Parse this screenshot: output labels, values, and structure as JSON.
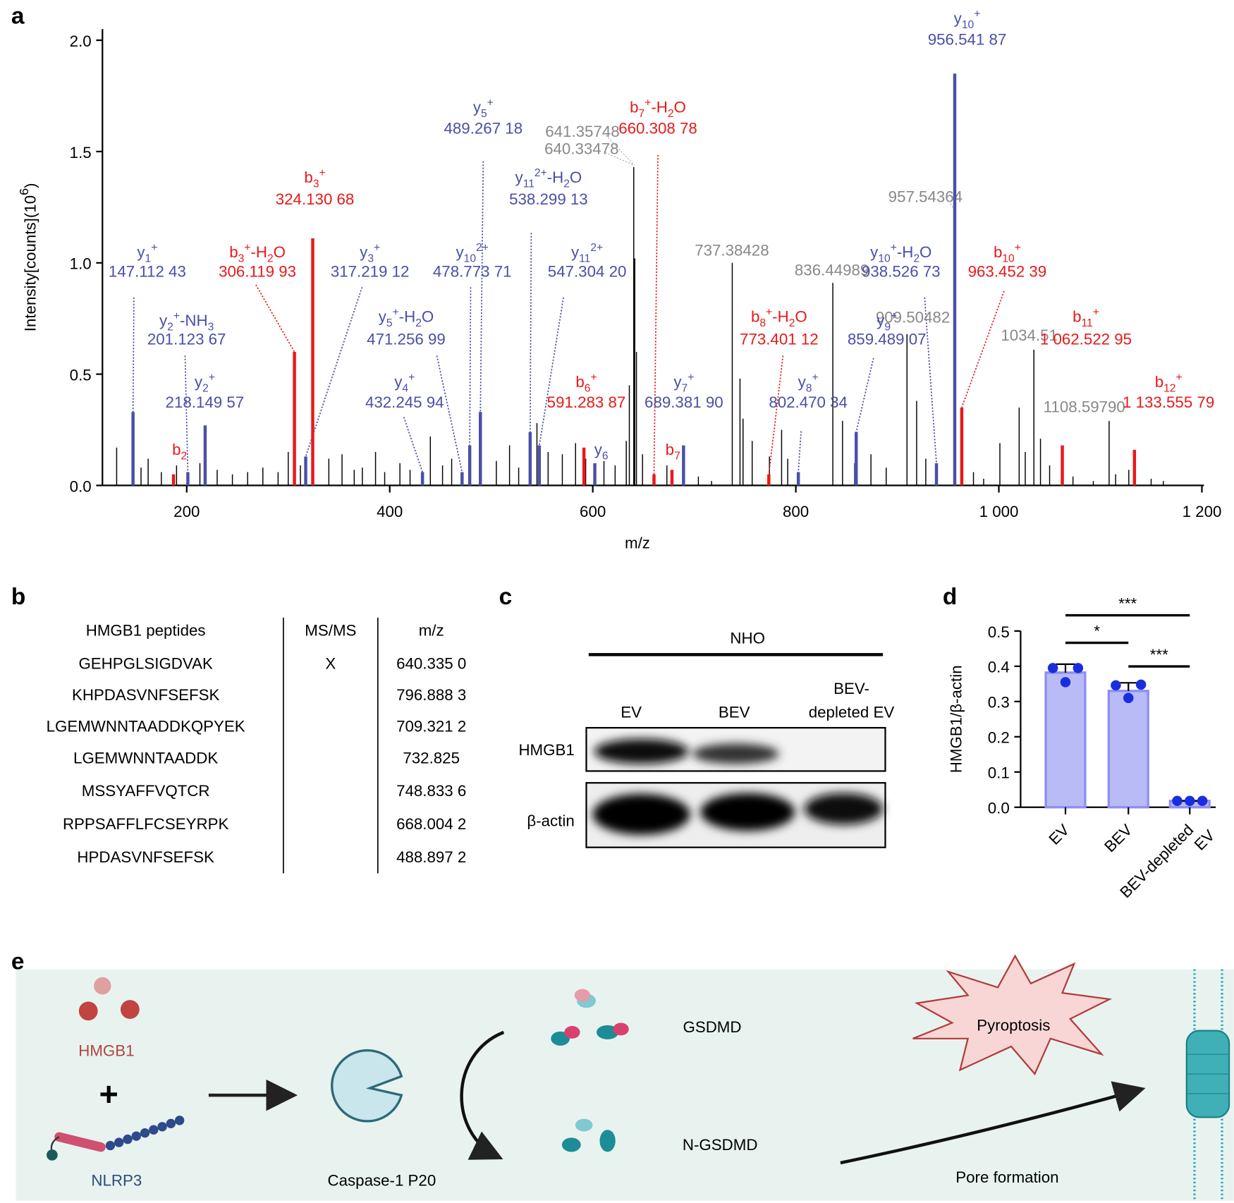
{
  "panel_labels": [
    "a",
    "b",
    "c",
    "d",
    "e"
  ],
  "chart_data": [
    {
      "type": "spectrum",
      "xlabel": "m/z",
      "ylabel": [
        [
          "Intensity[counts](10",
          ""
        ],
        [
          "6",
          "sup"
        ],
        [
          ")",
          ""
        ]
      ],
      "xlim": [
        117,
        1202
      ],
      "ylim": [
        0,
        2.05
      ],
      "xticks": [
        200,
        400,
        600,
        800,
        {
          "value": 1000,
          "label": "1 000"
        },
        {
          "value": 1200,
          "label": "1 200"
        }
      ],
      "yticks": [
        {
          "value": 0,
          "label": "0.0"
        },
        0.5,
        {
          "value": 1,
          "label": "1.0"
        },
        1.5,
        {
          "value": 2,
          "label": "2.0"
        }
      ],
      "series": [
        {
          "color": "#000000",
          "x": [
            131,
            155,
            162,
            175,
            190,
            213,
            230,
            245,
            260,
            275,
            290,
            300,
            312,
            340,
            353,
            365,
            373,
            386,
            395,
            410,
            420,
            440,
            452,
            461,
            505,
            518,
            527,
            545,
            556,
            570,
            583,
            593,
            611,
            622,
            633,
            636,
            640.33478,
            641.35748,
            643,
            649,
            673,
            704,
            717,
            737.38428,
            745,
            748,
            757,
            774,
            786,
            792,
            836.44989,
            846,
            858,
            874,
            889,
            909.50482,
            919,
            928,
            975,
            985,
            1001,
            1020,
            1026,
            1034.51,
            1041,
            1050,
            1073,
            1093,
            1108.5979,
            1115,
            1128,
            1150,
            1162
          ],
          "values": [
            0.17,
            0.08,
            0.12,
            0.06,
            0.09,
            0.1,
            0.07,
            0.05,
            0.06,
            0.08,
            0.06,
            0.15,
            0.09,
            0.12,
            0.14,
            0.07,
            0.08,
            0.15,
            0.06,
            0.1,
            0.07,
            0.22,
            0.09,
            0.12,
            0.11,
            0.18,
            0.08,
            0.28,
            0.15,
            0.14,
            0.19,
            0.12,
            0.11,
            0.09,
            0.2,
            0.45,
            1.43,
            1.02,
            0.6,
            0.14,
            0.09,
            0.04,
            0.02,
            1.0,
            0.48,
            0.3,
            0.2,
            0.13,
            0.25,
            0.12,
            0.91,
            0.29,
            0.1,
            0.14,
            0.08,
            0.68,
            0.38,
            0.12,
            0.06,
            0.03,
            0.19,
            0.35,
            0.15,
            0.61,
            0.21,
            0.09,
            0.04,
            0.02,
            0.29,
            0.05,
            0.07,
            0.03,
            0.02
          ]
        }
      ],
      "peak_labels": [
        "641.35748",
        "640.33478",
        "957.54364",
        "737.38428",
        "836.44989",
        "909.50482",
        "1034.51",
        "1108.59790"
      ],
      "ions": [
        {
          "color": "#4a4fa8",
          "x": 147.11243,
          "value": 0.33,
          "label": [
            [
              "y",
              ""
            ],
            [
              "1",
              "sub"
            ],
            [
              "+",
              "sup"
            ]
          ],
          "mz_label": "147.112 43"
        },
        {
          "color": "#e8191a",
          "x": 187,
          "value": 0.05,
          "label": [
            [
              "b",
              ""
            ],
            [
              "2",
              "sub"
            ]
          ]
        },
        {
          "color": "#4a4fa8",
          "x": 201.12367,
          "value": 0.06,
          "label": [
            [
              "y",
              ""
            ],
            [
              "2",
              "sub"
            ],
            [
              "+",
              "sup"
            ],
            [
              "-NH",
              ""
            ],
            [
              "3",
              "sub"
            ]
          ],
          "mz_label": "201.123 67"
        },
        {
          "color": "#4a4fa8",
          "x": 218.14957,
          "value": 0.27,
          "label": [
            [
              "y",
              ""
            ],
            [
              "2",
              "sub"
            ],
            [
              "+",
              "sup"
            ]
          ],
          "mz_label": "218.149 57"
        },
        {
          "color": "#e8191a",
          "x": 306.11993,
          "value": 0.6,
          "label": [
            [
              "b",
              ""
            ],
            [
              "3",
              "sub"
            ],
            [
              "+",
              "sup"
            ],
            [
              "-H",
              ""
            ],
            [
              "2",
              "sub"
            ],
            [
              "O",
              ""
            ]
          ],
          "mz_label": "306.119 93"
        },
        {
          "color": "#4a4fa8",
          "x": 317.21912,
          "value": 0.13,
          "label": [
            [
              "y",
              ""
            ],
            [
              "3",
              "sub"
            ],
            [
              "+",
              "sup"
            ]
          ],
          "mz_label": "317.219 12"
        },
        {
          "color": "#e8191a",
          "x": 324.13068,
          "value": 1.11,
          "label": [
            [
              "b",
              ""
            ],
            [
              "3",
              "sub"
            ],
            [
              "+",
              "sup"
            ]
          ],
          "mz_label": "324.130 68"
        },
        {
          "color": "#4a4fa8",
          "x": 432.24594,
          "value": 0.06,
          "label": [
            [
              "y",
              ""
            ],
            [
              "4",
              "sub"
            ],
            [
              "+",
              "sup"
            ]
          ],
          "mz_label": "432.245 94"
        },
        {
          "color": "#4a4fa8",
          "x": 471.25699,
          "value": 0.06,
          "label": [
            [
              "y",
              ""
            ],
            [
              "5",
              "sub"
            ],
            [
              "+",
              "sup"
            ],
            [
              "-H",
              ""
            ],
            [
              "2",
              "sub"
            ],
            [
              "O",
              ""
            ]
          ],
          "mz_label": "471.256 99"
        },
        {
          "color": "#4a4fa8",
          "x": 478.77371,
          "value": 0.18,
          "label": [
            [
              "y",
              ""
            ],
            [
              "10",
              "sub"
            ],
            [
              "2+",
              "sup"
            ]
          ],
          "mz_label": "478.773 71"
        },
        {
          "color": "#4a4fa8",
          "x": 489.26718,
          "value": 0.33,
          "label": [
            [
              "y",
              ""
            ],
            [
              "5",
              "sub"
            ],
            [
              "+",
              "sup"
            ]
          ],
          "mz_label": "489.267 18"
        },
        {
          "color": "#4a4fa8",
          "x": 538.29913,
          "value": 0.24,
          "label": [
            [
              "y",
              ""
            ],
            [
              "11",
              "sub"
            ],
            [
              "2+",
              "sup"
            ],
            [
              "-H",
              ""
            ],
            [
              "2",
              "sub"
            ],
            [
              "O",
              ""
            ]
          ],
          "mz_label": "538.299 13"
        },
        {
          "color": "#4a4fa8",
          "x": 547.3042,
          "value": 0.18,
          "label": [
            [
              "y",
              ""
            ],
            [
              "11",
              "sub"
            ],
            [
              "2+",
              "sup"
            ]
          ],
          "mz_label": "547.304 20"
        },
        {
          "color": "#e8191a",
          "x": 591.28387,
          "value": 0.17,
          "label": [
            [
              "b",
              ""
            ],
            [
              "6",
              "sub"
            ],
            [
              "+",
              "sup"
            ]
          ],
          "mz_label": "591.283 87"
        },
        {
          "color": "#4a4fa8",
          "x": 602,
          "value": 0.1,
          "label": [
            [
              "y",
              ""
            ],
            [
              "6",
              "sub"
            ]
          ]
        },
        {
          "color": "#e8191a",
          "x": 660.30878,
          "value": 0.05,
          "label": [
            [
              "b",
              ""
            ],
            [
              "7",
              "sub"
            ],
            [
              "+",
              "sup"
            ],
            [
              "-H",
              ""
            ],
            [
              "2",
              "sub"
            ],
            [
              "O",
              ""
            ]
          ],
          "mz_label": "660.308 78"
        },
        {
          "color": "#e8191a",
          "x": 678,
          "value": 0.07,
          "label": [
            [
              "b",
              ""
            ],
            [
              "7",
              "sub"
            ]
          ]
        },
        {
          "color": "#4a4fa8",
          "x": 689.3819,
          "value": 0.18,
          "label": [
            [
              "y",
              ""
            ],
            [
              "7",
              "sub"
            ],
            [
              "+",
              "sup"
            ]
          ],
          "mz_label": "689.381 90"
        },
        {
          "color": "#e8191a",
          "x": 773.40112,
          "value": 0.05,
          "label": [
            [
              "b",
              ""
            ],
            [
              "8",
              "sub"
            ],
            [
              "+",
              "sup"
            ],
            [
              "-H",
              ""
            ],
            [
              "2",
              "sub"
            ],
            [
              "O",
              ""
            ]
          ],
          "mz_label": "773.401 12"
        },
        {
          "color": "#4a4fa8",
          "x": 802.47034,
          "value": 0.06,
          "label": [
            [
              "y",
              ""
            ],
            [
              "8",
              "sub"
            ],
            [
              "+",
              "sup"
            ]
          ],
          "mz_label": "802.470 34"
        },
        {
          "color": "#4a4fa8",
          "x": 859.48907,
          "value": 0.24,
          "label": [
            [
              "y",
              ""
            ],
            [
              "9",
              "sub"
            ],
            [
              "+",
              "sup"
            ]
          ],
          "mz_label": "859.489 07"
        },
        {
          "color": "#4a4fa8",
          "x": 938.52673,
          "value": 0.1,
          "label": [
            [
              "y",
              ""
            ],
            [
              "10",
              "sub"
            ],
            [
              "+",
              "sup"
            ],
            [
              "-H",
              ""
            ],
            [
              "2",
              "sub"
            ],
            [
              "O",
              ""
            ]
          ],
          "mz_label": "938.526 73"
        },
        {
          "color": "#4a4fa8",
          "x": 956.54187,
          "value": 1.85,
          "label": [
            [
              "y",
              ""
            ],
            [
              "10",
              "sub"
            ],
            [
              "+",
              "sup"
            ]
          ],
          "mz_label": "956.541 87"
        },
        {
          "color": "#e8191a",
          "x": 963.45239,
          "value": 0.35,
          "label": [
            [
              "b",
              ""
            ],
            [
              "10",
              "sub"
            ],
            [
              "+",
              "sup"
            ]
          ],
          "mz_label": "963.452 39"
        },
        {
          "color": "#e8191a",
          "x": 1062.52295,
          "value": 0.18,
          "label": [
            [
              "b",
              ""
            ],
            [
              "11",
              "sub"
            ],
            [
              "+",
              "sup"
            ]
          ],
          "mz_label": "1 062.522 95"
        },
        {
          "color": "#e8191a",
          "x": 1133.55579,
          "value": 0.16,
          "label": [
            [
              "b",
              ""
            ],
            [
              "12",
              "sub"
            ],
            [
              "+",
              "sup"
            ]
          ],
          "mz_label": "1 133.555 79"
        }
      ]
    },
    {
      "type": "bar",
      "ylabel": "HMGB1/β-actin",
      "categories": [
        "EV",
        "BEV",
        "BEV-depleted\nEV"
      ],
      "values": [
        0.382,
        0.33,
        0.018
      ],
      "errors": [
        0.024,
        0.023,
        0
      ],
      "points": [
        [
          0.395,
          0.355,
          0.395
        ],
        [
          0.346,
          0.31,
          0.348
        ],
        [
          0.018,
          0.018,
          0.018
        ]
      ],
      "color": "#b9bbf7",
      "edge_color": "#8c8fef",
      "point_color": "#1a2ee0",
      "ylim": [
        0,
        0.5
      ],
      "yticks": [
        {
          "value": 0,
          "label": "0.0"
        },
        0.1,
        0.2,
        0.3,
        0.4,
        0.5
      ],
      "significance": [
        {
          "pair": [
            0,
            2
          ],
          "label": "***"
        },
        {
          "pair": [
            0,
            1
          ],
          "label": "*"
        },
        {
          "pair": [
            1,
            2
          ],
          "label": "***"
        }
      ]
    }
  ],
  "table": {
    "header": [
      "HMGB1 peptides",
      "MS/MS",
      "m/z"
    ],
    "rows": [
      [
        "GEHPGLSIGDVAK",
        "X",
        "640.335 0"
      ],
      [
        "KHPDASVNFSEFSK",
        null,
        "796.888 3"
      ],
      [
        "LGEMWNNTAADDKQPYEK",
        null,
        "709.321 2"
      ],
      [
        "LGEMWNNTAADDK",
        null,
        "732.825"
      ],
      [
        "MSSYAFFVQTCR",
        null,
        "748.833 6"
      ],
      [
        "RPPSAFFLFCSEYRPK",
        null,
        "668.004 2"
      ],
      [
        "HPDASVNFSEFSK",
        null,
        "488.897 2"
      ]
    ]
  },
  "blot": {
    "group": "NHO",
    "lanes": [
      "EV",
      "BEV",
      "BEV-\ndepleted EV"
    ],
    "rows": [
      "HMGB1",
      "β-actin"
    ]
  },
  "diagram": {
    "hmgb1": "HMGB1",
    "plus": "+",
    "nlrp3": "NLRP3",
    "caspase": "Caspase-1 P20",
    "gsdmd": "GSDMD",
    "n_gsdmd": "N-GSDMD",
    "pyroptosis": "Pyroptosis",
    "pore": "Pore formation"
  }
}
